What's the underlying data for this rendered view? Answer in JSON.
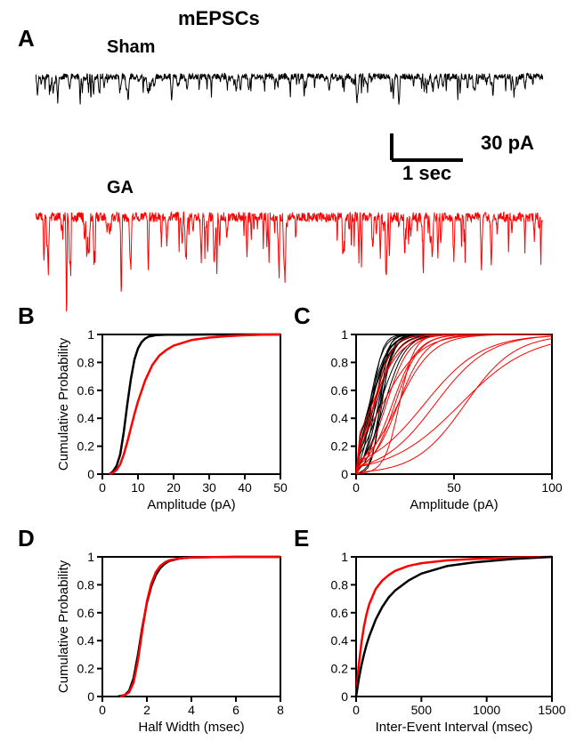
{
  "figure_title": "mEPSCs",
  "panels": {
    "A": {
      "label": "A",
      "trace_sham_label": "Sham",
      "trace_ga_label": "GA",
      "scalebar": {
        "x_label": "1 sec",
        "y_label": "30 pA"
      },
      "colors": {
        "sham": "#000000",
        "ga": "#ff0000"
      }
    },
    "B": {
      "label": "B",
      "type": "line",
      "xlabel": "Amplitude (pA)",
      "ylabel": "Cumulative Probability",
      "xlim": [
        0,
        50
      ],
      "ylim": [
        0,
        1
      ],
      "xticks": [
        0,
        10,
        20,
        30,
        40,
        50
      ],
      "yticks": [
        0,
        0.2,
        0.4,
        0.6,
        0.8,
        1
      ],
      "line_width": 2.5,
      "series": [
        {
          "color": "#000000",
          "x": [
            2,
            3,
            4,
            5,
            6,
            7,
            8,
            9,
            10,
            11,
            12,
            13,
            15,
            18,
            22,
            30,
            50
          ],
          "y": [
            0,
            0.02,
            0.06,
            0.14,
            0.3,
            0.5,
            0.68,
            0.82,
            0.9,
            0.945,
            0.97,
            0.985,
            0.995,
            0.998,
            0.999,
            1,
            1
          ]
        },
        {
          "color": "#ff0000",
          "x": [
            2,
            3,
            4,
            5,
            6,
            7,
            8,
            9,
            10,
            12,
            14,
            16,
            18,
            20,
            25,
            30,
            35,
            40,
            45,
            50
          ],
          "y": [
            0,
            0.01,
            0.03,
            0.07,
            0.14,
            0.23,
            0.33,
            0.43,
            0.52,
            0.67,
            0.78,
            0.85,
            0.89,
            0.92,
            0.96,
            0.978,
            0.988,
            0.994,
            0.998,
            1
          ]
        }
      ]
    },
    "C": {
      "label": "C",
      "type": "line-multi",
      "xlabel": "Amplitude (pA)",
      "ylabel": "",
      "xlim": [
        0,
        100
      ],
      "ylim": [
        0,
        1
      ],
      "xticks": [
        0,
        50,
        100
      ],
      "yticks": [
        0,
        0.2,
        0.4,
        0.6,
        0.8,
        1
      ],
      "line_width": 1.2
    },
    "D": {
      "label": "D",
      "type": "line",
      "xlabel": "Half Width (msec)",
      "ylabel": "Cumulative Probability",
      "xlim": [
        0,
        8
      ],
      "ylim": [
        0,
        1
      ],
      "xticks": [
        0,
        2,
        4,
        6,
        8
      ],
      "yticks": [
        0,
        0.2,
        0.4,
        0.6,
        0.8,
        1
      ],
      "line_width": 2.5,
      "series": [
        {
          "color": "#000000",
          "x": [
            0.7,
            1.0,
            1.2,
            1.4,
            1.6,
            1.8,
            2.0,
            2.2,
            2.4,
            2.6,
            2.8,
            3.0,
            3.5,
            4.0,
            5.0,
            6.0,
            8.0
          ],
          "y": [
            0,
            0.01,
            0.04,
            0.13,
            0.3,
            0.5,
            0.67,
            0.79,
            0.87,
            0.92,
            0.95,
            0.97,
            0.99,
            0.996,
            0.999,
            1,
            1
          ]
        },
        {
          "color": "#ff0000",
          "x": [
            0.8,
            1.0,
            1.2,
            1.4,
            1.6,
            1.8,
            2.0,
            2.2,
            2.4,
            2.6,
            2.8,
            3.0,
            3.5,
            4.0,
            5.0,
            6.0,
            8.0
          ],
          "y": [
            0,
            0.01,
            0.03,
            0.1,
            0.26,
            0.48,
            0.68,
            0.81,
            0.89,
            0.935,
            0.96,
            0.975,
            0.99,
            0.996,
            0.999,
            1,
            1
          ]
        }
      ]
    },
    "E": {
      "label": "E",
      "type": "line",
      "xlabel": "Inter-Event Interval (msec)",
      "ylabel": "",
      "xlim": [
        0,
        1500
      ],
      "ylim": [
        0,
        1
      ],
      "xticks": [
        0,
        500,
        1000,
        1500
      ],
      "yticks": [
        0,
        0.2,
        0.4,
        0.6,
        0.8,
        1
      ],
      "line_width": 2.5,
      "series": [
        {
          "color": "#ff0000",
          "x": [
            0,
            20,
            40,
            60,
            80,
            100,
            150,
            200,
            250,
            300,
            400,
            500,
            700,
            900,
            1200,
            1500
          ],
          "y": [
            0,
            0.22,
            0.38,
            0.5,
            0.59,
            0.66,
            0.77,
            0.83,
            0.87,
            0.9,
            0.935,
            0.955,
            0.975,
            0.985,
            0.995,
            1
          ]
        },
        {
          "color": "#000000",
          "x": [
            0,
            20,
            40,
            60,
            80,
            100,
            150,
            200,
            250,
            300,
            400,
            500,
            700,
            900,
            1200,
            1500
          ],
          "y": [
            0,
            0.12,
            0.22,
            0.3,
            0.37,
            0.43,
            0.55,
            0.64,
            0.71,
            0.76,
            0.83,
            0.88,
            0.935,
            0.96,
            0.985,
            1
          ]
        }
      ]
    }
  },
  "chart_style": {
    "axis_fontsize": 14,
    "label_fontsize": 15,
    "background": "#ffffff"
  }
}
